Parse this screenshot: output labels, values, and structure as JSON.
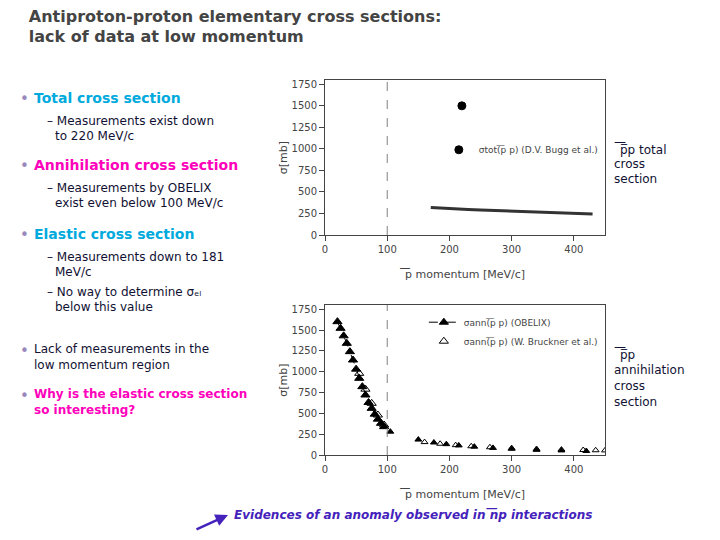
{
  "title": "Antiproton-proton elementary cross sections:\nlack of data at low momentum",
  "annotations": [
    {
      "text": "•",
      "color": "#9988BB"
    },
    {
      "text": "Total cross section",
      "color": "#00AADD"
    },
    {
      "text": "– Measurements exist down",
      "color": "#111133"
    },
    {
      "text": "to 220 MeV/c",
      "color": "#111133"
    },
    {
      "text": "•",
      "color": "#9988BB"
    },
    {
      "text": "Annihilation cross section",
      "color": "#FF00BB"
    },
    {
      "text": "– Measurements by OBELIX",
      "color": "#111133"
    },
    {
      "text": "exist even below 100 MeV/c",
      "color": "#111133"
    },
    {
      "text": "•",
      "color": "#9988BB"
    },
    {
      "text": "Elastic cross section",
      "color": "#00AADD"
    },
    {
      "text": "– Measurements down to 181",
      "color": "#111133"
    },
    {
      "text": "MeV/c",
      "color": "#111133"
    },
    {
      "text": "– No way to determine σₑₗ",
      "color": "#111133"
    },
    {
      "text": "below this value",
      "color": "#111133"
    },
    {
      "text": "•",
      "color": "#9988BB"
    },
    {
      "text": "Lack of measurements in the",
      "color": "#111133"
    },
    {
      "text": "low momentum region",
      "color": "#111133"
    },
    {
      "text": "•",
      "color": "#9988BB"
    },
    {
      "text": "Why is the elastic cross section",
      "color": "#FF00BB"
    },
    {
      "text": "so interesting?",
      "color": "#FF00BB"
    },
    {
      "text": "Evidences of an anomaly observed in ͞np interactions",
      "color": "#4422BB"
    },
    {
      "text": "͞p̅p total",
      "color": "#111133"
    },
    {
      "text": "cross",
      "color": "#111133"
    },
    {
      "text": "section",
      "color": "#111133"
    },
    {
      "text": "͞p̅p",
      "color": "#111133"
    },
    {
      "text": "annihilation",
      "color": "#111133"
    },
    {
      "text": "cross",
      "color": "#111133"
    },
    {
      "text": "section",
      "color": "#111133"
    }
  ],
  "chart_data": [
    {
      "type": "scatter",
      "xlabel": "͞p momentum [MeV/c]",
      "ylabel": "σ[mb]",
      "xlim": [
        0,
        450
      ],
      "ylim": [
        0,
        1800
      ],
      "xticks": [
        0,
        100,
        200,
        300,
        400
      ],
      "yticks": [
        0,
        250,
        500,
        750,
        1000,
        1250,
        1500,
        1750
      ],
      "grid": false,
      "legend": "right",
      "series": [
        {
          "type": "line",
          "color": "#333333",
          "line_style": "solid",
          "x": [
            170,
            190,
            210,
            230,
            250,
            270,
            290,
            310,
            330,
            350,
            370,
            390,
            410,
            430
          ],
          "values": [
            320,
            310,
            302,
            296,
            290,
            284,
            278,
            272,
            267,
            262,
            257,
            252,
            247,
            243
          ]
        },
        {
          "type": "scatter",
          "name": "σtot(͞p p) (D.V. Bugg et al.)",
          "color": "black",
          "marker": "circle",
          "x": [
            220
          ],
          "values": [
            1500
          ]
        },
        {
          "type": "vline",
          "color": "gray",
          "line_style": "dashed",
          "x": [
            100
          ]
        }
      ]
    },
    {
      "type": "scatter",
      "xlabel": "͞p momentum [MeV/c]",
      "ylabel": "σ[mb]",
      "xlim": [
        0,
        450
      ],
      "ylim": [
        0,
        1800
      ],
      "xticks": [
        0,
        100,
        200,
        300,
        400
      ],
      "yticks": [
        0,
        250,
        500,
        750,
        1000,
        1250,
        1500,
        1750
      ],
      "grid": false,
      "legend": "upper right",
      "series": [
        {
          "type": "line",
          "name": "σann(͞p p) (OBELIX)",
          "color": "black",
          "marker": "triangle-up",
          "line_style": "dashed",
          "x": [
            20,
            25,
            30,
            35,
            40,
            45,
            50,
            55,
            60,
            65,
            70,
            75,
            80,
            85,
            90,
            95
          ],
          "values": [
            1600,
            1520,
            1430,
            1340,
            1240,
            1140,
            1030,
            920,
            820,
            720,
            630,
            560,
            490,
            430,
            380,
            340
          ]
        },
        {
          "type": "scatter",
          "name": "σann(͞p p) (W. Bruckner et al.)",
          "color": "black",
          "marker": "triangle-up-open",
          "x": [
            55,
            65,
            75,
            85,
            95
          ],
          "values": [
            980,
            790,
            620,
            480,
            360
          ]
        },
        {
          "type": "scatter",
          "color": "black",
          "marker": "triangle-up",
          "x": [
            105,
            150,
            175,
            195,
            215,
            240,
            270,
            300,
            340,
            380,
            420
          ],
          "values": [
            280,
            185,
            150,
            130,
            115,
            100,
            85,
            75,
            62,
            55,
            48
          ]
        },
        {
          "type": "scatter",
          "color": "black",
          "marker": "triangle-up-open",
          "x": [
            160,
            185,
            210,
            235,
            265,
            300,
            340,
            380,
            415,
            435,
            450
          ],
          "values": [
            155,
            135,
            118,
            105,
            93,
            82,
            72,
            65,
            60,
            57,
            55
          ]
        },
        {
          "type": "vline",
          "color": "gray",
          "line_style": "dashed",
          "x": [
            100
          ]
        }
      ]
    }
  ]
}
